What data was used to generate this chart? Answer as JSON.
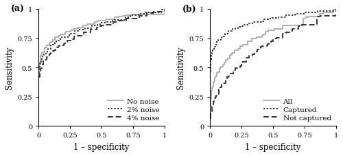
{
  "panel_a": {
    "label": "(a)",
    "xlabel": "1 – specificity",
    "ylabel": "Sensitivity",
    "xticks": [
      0,
      0.25,
      0.5,
      0.75,
      1
    ],
    "yticks": [
      0,
      0.25,
      0.5,
      0.75,
      1
    ],
    "xlim": [
      0,
      1
    ],
    "ylim": [
      0,
      1
    ],
    "curves": [
      {
        "label": "No noise",
        "color": "#aaaaaa",
        "linestyle": "solid",
        "linewidth": 1.3,
        "seed": 1,
        "y0": 0.35,
        "alpha": 0.25,
        "beta": 0.8
      },
      {
        "label": "2% noise",
        "color": "#333333",
        "linestyle": "dotted",
        "linewidth": 1.4,
        "seed": 2,
        "y0": 0.35,
        "alpha": 0.3,
        "beta": 0.9
      },
      {
        "label": "4% noise",
        "color": "#333333",
        "linestyle": "dashed",
        "linewidth": 1.4,
        "seed": 3,
        "y0": 0.35,
        "alpha": 0.38,
        "beta": 1.05
      }
    ]
  },
  "panel_b": {
    "label": "(b)",
    "xlabel": "1 – specificity",
    "ylabel": "Sensitivity",
    "xticks": [
      0,
      0.25,
      0.5,
      0.75,
      1
    ],
    "yticks": [
      0,
      0.25,
      0.5,
      0.75,
      1
    ],
    "xlim": [
      0,
      1
    ],
    "ylim": [
      0,
      1
    ],
    "curves": [
      {
        "label": "All",
        "color": "#aaaaaa",
        "linestyle": "solid",
        "linewidth": 1.3,
        "seed": 10,
        "y0": 0.0,
        "alpha": 0.28,
        "beta": 0.85
      },
      {
        "label": "Captured",
        "color": "#333333",
        "linestyle": "dotted",
        "linewidth": 1.4,
        "seed": 11,
        "y0": 0.0,
        "alpha": 0.12,
        "beta": 0.5
      },
      {
        "label": "Not captured",
        "color": "#333333",
        "linestyle": "dashed",
        "linewidth": 1.4,
        "seed": 12,
        "y0": 0.0,
        "alpha": 0.45,
        "beta": 1.1
      }
    ]
  },
  "fig_width": 5.0,
  "fig_height": 2.28,
  "dpi": 100,
  "font_size": 7.5,
  "label_font_size": 8.5,
  "panel_label_font_size": 9,
  "tick_font_size": 7
}
